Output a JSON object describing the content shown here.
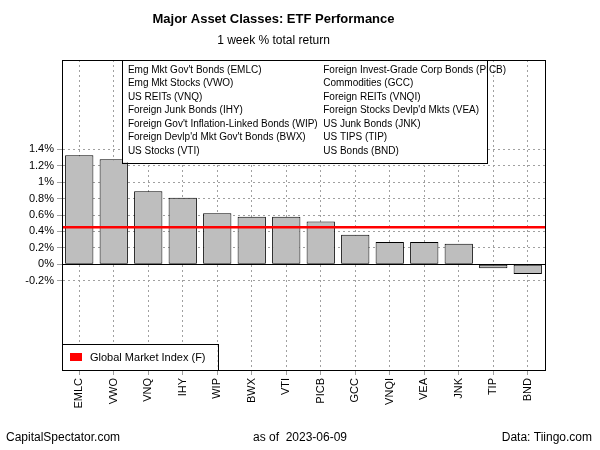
{
  "chart_data": {
    "type": "bar",
    "title": "Major Asset Classes: ETF Performance",
    "subtitle": "1 week % total return",
    "categories": [
      "EMLC",
      "VWO",
      "VNQ",
      "IHY",
      "WIP",
      "BWX",
      "VTI",
      "PICB",
      "GCC",
      "VNQI",
      "VEA",
      "JNK",
      "TIP",
      "BND"
    ],
    "values": [
      1.33,
      1.28,
      0.89,
      0.81,
      0.62,
      0.58,
      0.58,
      0.52,
      0.36,
      0.27,
      0.27,
      0.25,
      -0.05,
      -0.12
    ],
    "color": "#bebebe",
    "ylim": [
      -1.29,
      2.49
    ],
    "yticks": [
      {
        "value": -0.2,
        "label": "-0.2%"
      },
      {
        "value": 0,
        "label": "0%"
      },
      {
        "value": 0.2,
        "label": "0.2%"
      },
      {
        "value": 0.4,
        "label": "0.4%"
      },
      {
        "value": 0.6,
        "label": "0.6%"
      },
      {
        "value": 0.8,
        "label": "0.8%"
      },
      {
        "value": 1,
        "label": "1%"
      },
      {
        "value": 1.2,
        "label": "1.2%"
      },
      {
        "value": 1.4,
        "label": "1.4%"
      }
    ],
    "grid": true,
    "legend": "bottomleft",
    "reference_line": {
      "name": "Global Market Index (F)",
      "value": 0.45,
      "color": "#ff0000"
    },
    "annotations": [
      "Emg Mkt Gov't Bonds (EMLC)",
      "Emg Mkt Stocks (VWO)",
      "US REITs (VNQ)",
      "Foreign Junk Bonds (IHY)",
      "Foreign Gov't Inflation-Linked Bonds (WIP)",
      "Foreign Devlp'd Mkt Gov't Bonds (BWX)",
      "US Stocks (VTI)",
      "Foreign Invest-Grade Corp Bonds (PICB)",
      "Commodities (GCC)",
      "Foreign REITs (VNQI)",
      "Foreign Stocks Devlp'd Mkts (VEA)",
      "US Junk Bonds (JNK)",
      "US TIPS (TIP)",
      "US Bonds (BND)"
    ],
    "footer": [
      "CapitalSpectator.com",
      "as of  2023-06-09",
      "Data: Tiingo.com"
    ]
  }
}
